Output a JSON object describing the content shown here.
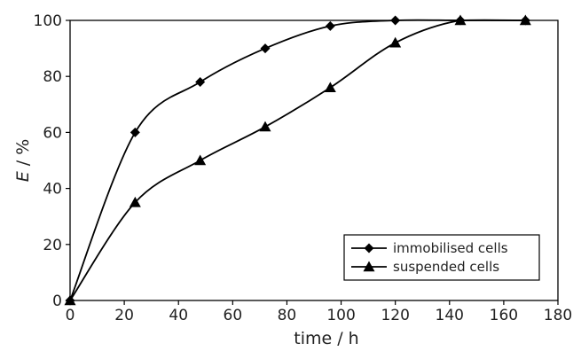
{
  "chart_data": {
    "type": "line",
    "title": "",
    "xlabel": "time / h",
    "ylabel_italic": "E",
    "ylabel_rest": " / %",
    "xlim": [
      0,
      180
    ],
    "ylim": [
      0,
      100
    ],
    "x_ticks": [
      "0",
      "20",
      "40",
      "60",
      "80",
      "100",
      "120",
      "140",
      "160",
      "180"
    ],
    "y_ticks": [
      "0",
      "20",
      "40",
      "60",
      "80",
      "100"
    ],
    "grid": false,
    "legend_position": "bottom-right",
    "series": [
      {
        "name": "immobilised cells",
        "marker": "diamond",
        "x": [
          0,
          24,
          48,
          72,
          96,
          120,
          144,
          168
        ],
        "y": [
          0,
          60,
          78,
          90,
          98,
          100,
          100,
          100
        ]
      },
      {
        "name": "suspended cells",
        "marker": "triangle",
        "x": [
          0,
          24,
          48,
          72,
          96,
          120,
          144,
          168
        ],
        "y": [
          0,
          35,
          50,
          62,
          76,
          92,
          100,
          100
        ]
      }
    ]
  }
}
